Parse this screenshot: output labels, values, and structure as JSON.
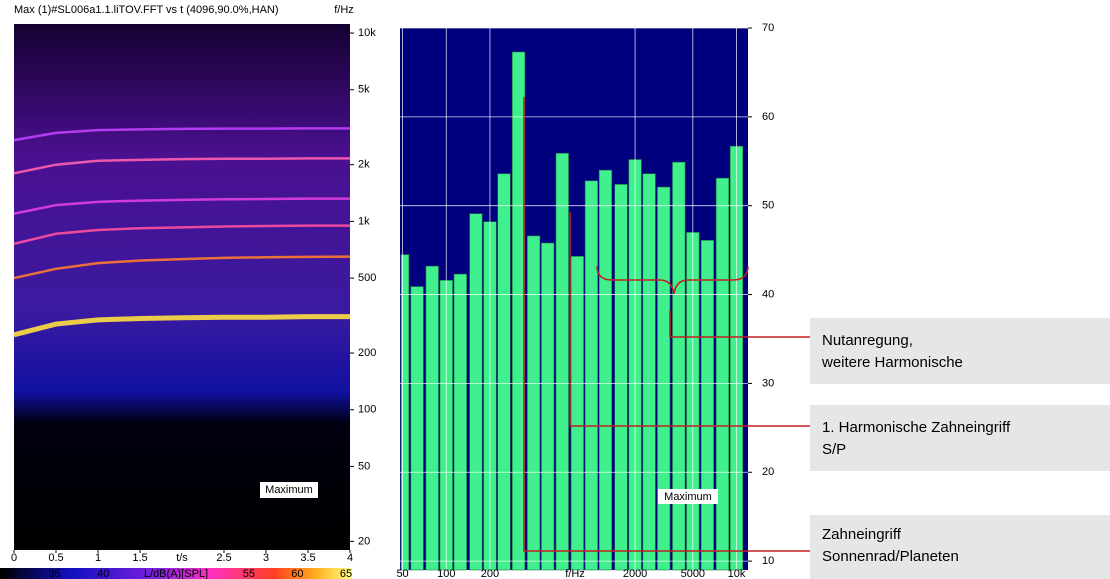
{
  "chart_data": [
    {
      "type": "line",
      "title": "Max (1)#SL006a1.1.liTOV.FFT vs t (4096,90.0%,HAN)",
      "xlabel": "t/s",
      "ylabel": "f/Hz",
      "x": [
        0,
        0.5,
        1,
        1.5,
        2,
        2.5,
        3,
        3.5,
        4
      ],
      "series": [
        {
          "color": "#ffe040",
          "values": [
            250,
            285,
            300,
            305,
            308,
            310,
            310,
            312,
            312
          ]
        },
        {
          "color": "#ff7a30",
          "values": [
            500,
            560,
            600,
            620,
            630,
            640,
            645,
            648,
            650
          ]
        },
        {
          "color": "#ff50a0",
          "values": [
            760,
            860,
            900,
            920,
            930,
            940,
            945,
            950,
            950
          ]
        },
        {
          "color": "#e040e0",
          "values": [
            1100,
            1220,
            1270,
            1290,
            1300,
            1310,
            1315,
            1320,
            1320
          ]
        },
        {
          "color": "#ff60b0",
          "values": [
            1800,
            2000,
            2100,
            2120,
            2140,
            2150,
            2150,
            2160,
            2160
          ]
        },
        {
          "color": "#c040ff",
          "values": [
            2700,
            2950,
            3050,
            3080,
            3100,
            3110,
            3110,
            3120,
            3120
          ]
        }
      ],
      "xlim": [
        0,
        4
      ],
      "xticks": [
        0,
        0.5,
        1,
        1.5,
        2.5,
        3,
        3.5,
        4
      ],
      "ylim": [
        18,
        11170
      ],
      "ylog": true,
      "yticks": [
        {
          "value": 10000,
          "label": "10k"
        },
        {
          "value": 5000,
          "label": "5k"
        },
        {
          "value": 2000,
          "label": "2k"
        },
        {
          "value": 1000,
          "label": "1k"
        },
        500,
        200,
        100,
        50,
        20
      ],
      "annotation": "Maximum",
      "colorbar": {
        "label": "L/dB(A)[SPL]",
        "lim": [
          30,
          65
        ],
        "ticks": [
          30,
          35,
          40,
          55,
          60,
          65
        ]
      }
    },
    {
      "type": "bar",
      "x": [
        50,
        63,
        80,
        100,
        125,
        160,
        200,
        250,
        315,
        400,
        500,
        630,
        800,
        1000,
        1250,
        1600,
        2000,
        2500,
        3150,
        4000,
        5000,
        6300,
        8000,
        10000
      ],
      "values": [
        44.5,
        40.9,
        43.2,
        41.6,
        42.3,
        49.1,
        48.2,
        53.6,
        67.3,
        46.6,
        45.8,
        55.9,
        44.3,
        52.8,
        54.0,
        52.4,
        55.2,
        53.6,
        52.1,
        54.9,
        47.0,
        46.1,
        53.1,
        56.7
      ],
      "color": "#3ff08c",
      "xlim": [
        48,
        12000
      ],
      "xlog": true,
      "xticks": [
        50,
        100,
        200,
        2000,
        5000,
        {
          "value": 10000,
          "label": "10k"
        }
      ],
      "xlabel": "f/Hz",
      "ylim": [
        9,
        70
      ],
      "yticks": [
        10,
        20,
        30,
        40,
        50,
        60,
        70
      ],
      "grid": true,
      "annotation": "Maximum",
      "annotations": [
        [
          "Nutanregung,",
          "weitere Harmonische"
        ],
        [
          "1. Harmonische Zahneingriff",
          "S/P"
        ],
        [
          "Zahneingriff",
          "Sonnenrad/Planeten"
        ]
      ]
    }
  ]
}
